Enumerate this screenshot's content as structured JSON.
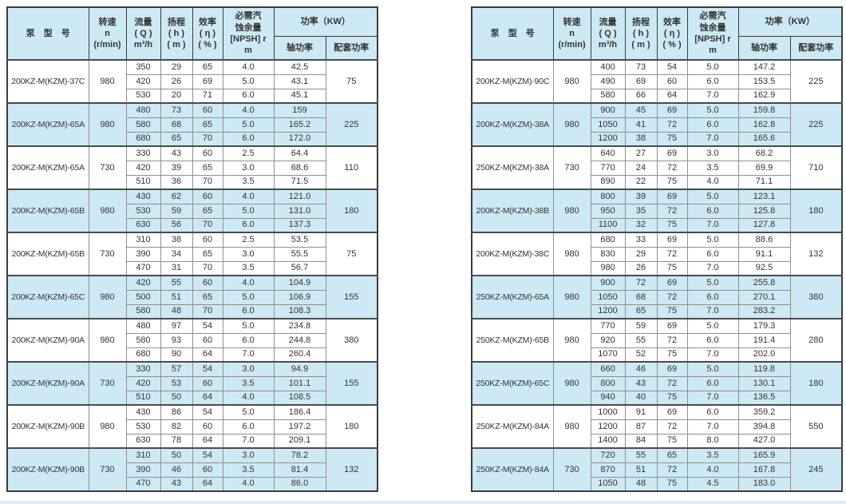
{
  "colors": {
    "highlight": "#cde9f5",
    "border-dark": "#3b3b3b",
    "border-mid": "#8f8f8f",
    "text": "#333333",
    "strip": "#daeef7"
  },
  "columns": {
    "model": "泵　型　号",
    "speed": "转速\nn\n(r/min)",
    "flow": "流量\n( Q )\nm³/h",
    "head": "扬程\n( h )\n( m )",
    "efficiency": "效率\n( η )\n( % )",
    "npsh": "必需汽\n蚀余量\n[NPSH] r\nm",
    "power": "功率（KW）",
    "shaft_power": "轴功率",
    "matched_power": "配套功率"
  },
  "tables": [
    {
      "name": "left",
      "groups": [
        {
          "model": "200KZ-M(KZM)-37C",
          "speed": "980",
          "highlight": false,
          "matched_power": "75",
          "rows": [
            [
              "350",
              "29",
              "65",
              "4.0",
              "42.5"
            ],
            [
              "420",
              "26",
              "69",
              "5.0",
              "43.1"
            ],
            [
              "530",
              "20",
              "71",
              "6.0",
              "45.1"
            ]
          ]
        },
        {
          "model": "200KZ-M(KZM)-65A",
          "speed": "980",
          "highlight": true,
          "matched_power": "225",
          "rows": [
            [
              "480",
              "73",
              "60",
              "4.0",
              "159"
            ],
            [
              "580",
              "68",
              "65",
              "5.0",
              "165.2"
            ],
            [
              "680",
              "65",
              "70",
              "6.0",
              "172.0"
            ]
          ]
        },
        {
          "model": "200KZ-M(KZM)-65A",
          "speed": "730",
          "highlight": false,
          "matched_power": "110",
          "rows": [
            [
              "330",
              "43",
              "60",
              "2.5",
              "64.4"
            ],
            [
              "420",
              "39",
              "65",
              "3.0",
              "68.6"
            ],
            [
              "510",
              "36",
              "70",
              "3.5",
              "71.5"
            ]
          ]
        },
        {
          "model": "200KZ-M(KZM)-65B",
          "speed": "980",
          "highlight": true,
          "matched_power": "180",
          "rows": [
            [
              "430",
              "62",
              "60",
              "4.0",
              "121.0"
            ],
            [
              "530",
              "59",
              "65",
              "5.0",
              "131.0"
            ],
            [
              "630",
              "56",
              "70",
              "6.0",
              "137.3"
            ]
          ]
        },
        {
          "model": "200KZ-M(KZM)-65B",
          "speed": "730",
          "highlight": false,
          "matched_power": "75",
          "rows": [
            [
              "310",
              "38",
              "60",
              "2.5",
              "53.5"
            ],
            [
              "390",
              "34",
              "65",
              "3.0",
              "55.5"
            ],
            [
              "470",
              "31",
              "70",
              "3.5",
              "56.7"
            ]
          ]
        },
        {
          "model": "200KZ-M(KZM)-65C",
          "speed": "980",
          "highlight": true,
          "matched_power": "155",
          "rows": [
            [
              "420",
              "55",
              "60",
              "4.0",
              "104.9"
            ],
            [
              "500",
              "51",
              "65",
              "5.0",
              "106.9"
            ],
            [
              "580",
              "48",
              "70",
              "6.0",
              "108.3"
            ]
          ]
        },
        {
          "model": "200KZ-M(KZM)-90A",
          "speed": "980",
          "highlight": false,
          "matched_power": "380",
          "rows": [
            [
              "480",
              "97",
              "54",
              "5.0",
              "234.8"
            ],
            [
              "580",
              "93",
              "60",
              "6.0",
              "244.8"
            ],
            [
              "680",
              "90",
              "64",
              "7.0",
              "260.4"
            ]
          ]
        },
        {
          "model": "200KZ-M(KZM)-90A",
          "speed": "730",
          "highlight": true,
          "matched_power": "155",
          "rows": [
            [
              "330",
              "57",
              "54",
              "3.0",
              "94.9"
            ],
            [
              "420",
              "53",
              "60",
              "3.5",
              "101.1"
            ],
            [
              "510",
              "50",
              "64",
              "4.0",
              "108.5"
            ]
          ]
        },
        {
          "model": "200KZ-M(KZM)-90B",
          "speed": "980",
          "highlight": false,
          "matched_power": "180",
          "rows": [
            [
              "430",
              "86",
              "54",
              "5.0",
              "186.4"
            ],
            [
              "530",
              "82",
              "60",
              "6.0",
              "197.2"
            ],
            [
              "630",
              "78",
              "64",
              "7.0",
              "209.1"
            ]
          ]
        },
        {
          "model": "200KZ-M(KZM)-90B",
          "speed": "730",
          "highlight": true,
          "matched_power": "132",
          "rows": [
            [
              "310",
              "50",
              "54",
              "3.0",
              "78.2"
            ],
            [
              "390",
              "46",
              "60",
              "3.5",
              "81.4"
            ],
            [
              "470",
              "43",
              "64",
              "4.0",
              "86.0"
            ]
          ]
        }
      ]
    },
    {
      "name": "right",
      "groups": [
        {
          "model": "200KZ-M(KZM)-90C",
          "speed": "980",
          "highlight": false,
          "matched_power": "225",
          "rows": [
            [
              "400",
              "73",
              "54",
              "5.0",
              "147.2"
            ],
            [
              "490",
              "69",
              "60",
              "6.0",
              "153.5"
            ],
            [
              "580",
              "66",
              "64",
              "7.0",
              "162.9"
            ]
          ]
        },
        {
          "model": "200KZ-M(KZM)-38A",
          "speed": "980",
          "highlight": true,
          "matched_power": "225",
          "rows": [
            [
              "900",
              "45",
              "69",
              "5.0",
              "159.8"
            ],
            [
              "1050",
              "41",
              "72",
              "6.0",
              "162.8"
            ],
            [
              "1200",
              "38",
              "75",
              "7.0",
              "165.6"
            ]
          ]
        },
        {
          "model": "250KZ-M(KZM)-38A",
          "speed": "730",
          "highlight": false,
          "matched_power": "710",
          "rows": [
            [
              "640",
              "27",
              "69",
              "3.0",
              "68.2"
            ],
            [
              "770",
              "24",
              "72",
              "3.5",
              "69.9"
            ],
            [
              "890",
              "22",
              "75",
              "4.0",
              "71.1"
            ]
          ]
        },
        {
          "model": "200KZ-M(KZM)-38B",
          "speed": "980",
          "highlight": true,
          "matched_power": "180",
          "rows": [
            [
              "800",
              "39",
              "69",
              "5.0",
              "123.1"
            ],
            [
              "950",
              "35",
              "72",
              "6.0",
              "125.8"
            ],
            [
              "1100",
              "32",
              "75",
              "7.0",
              "127.8"
            ]
          ]
        },
        {
          "model": "200KZ-M(KZM)-38C",
          "speed": "980",
          "highlight": false,
          "matched_power": "132",
          "rows": [
            [
              "680",
              "33",
              "69",
              "5.0",
              "88.6"
            ],
            [
              "830",
              "29",
              "72",
              "6.0",
              "91.1"
            ],
            [
              "980",
              "26",
              "75",
              "7.0",
              "92.5"
            ]
          ]
        },
        {
          "model": "250KZ-M(KZM)-65A",
          "speed": "980",
          "highlight": true,
          "matched_power": "380",
          "rows": [
            [
              "900",
              "72",
              "69",
              "5.0",
              "255.8"
            ],
            [
              "1050",
              "68",
              "72",
              "6.0",
              "270.1"
            ],
            [
              "1200",
              "65",
              "75",
              "7.0",
              "283.2"
            ]
          ]
        },
        {
          "model": "250KZ-M(KZM)-65B",
          "speed": "980",
          "highlight": false,
          "matched_power": "280",
          "rows": [
            [
              "770",
              "59",
              "69",
              "5.0",
              "179.3"
            ],
            [
              "920",
              "55",
              "72",
              "6.0",
              "191.4"
            ],
            [
              "1070",
              "52",
              "75",
              "7.0",
              "202.0"
            ]
          ]
        },
        {
          "model": "250KZ-M(KZM)-65C",
          "speed": "980",
          "highlight": true,
          "matched_power": "180",
          "rows": [
            [
              "660",
              "46",
              "69",
              "5.0",
              "119.8"
            ],
            [
              "800",
              "43",
              "72",
              "6.0",
              "130.1"
            ],
            [
              "940",
              "40",
              "75",
              "7.0",
              "136.5"
            ]
          ]
        },
        {
          "model": "250KZ-M(KZM)-84A",
          "speed": "980",
          "highlight": false,
          "matched_power": "550",
          "rows": [
            [
              "1000",
              "91",
              "69",
              "6.0",
              "359.2"
            ],
            [
              "1200",
              "87",
              "72",
              "7.0",
              "394.8"
            ],
            [
              "1400",
              "84",
              "75",
              "8.0",
              "427.0"
            ]
          ]
        },
        {
          "model": "250KZ-M(KZM)-84A",
          "speed": "730",
          "highlight": true,
          "matched_power": "245",
          "rows": [
            [
              "720",
              "55",
              "65",
              "3.5",
              "165.9"
            ],
            [
              "870",
              "51",
              "72",
              "4.0",
              "167.8"
            ],
            [
              "1050",
              "48",
              "75",
              "4.5",
              "183.0"
            ]
          ]
        }
      ]
    }
  ]
}
